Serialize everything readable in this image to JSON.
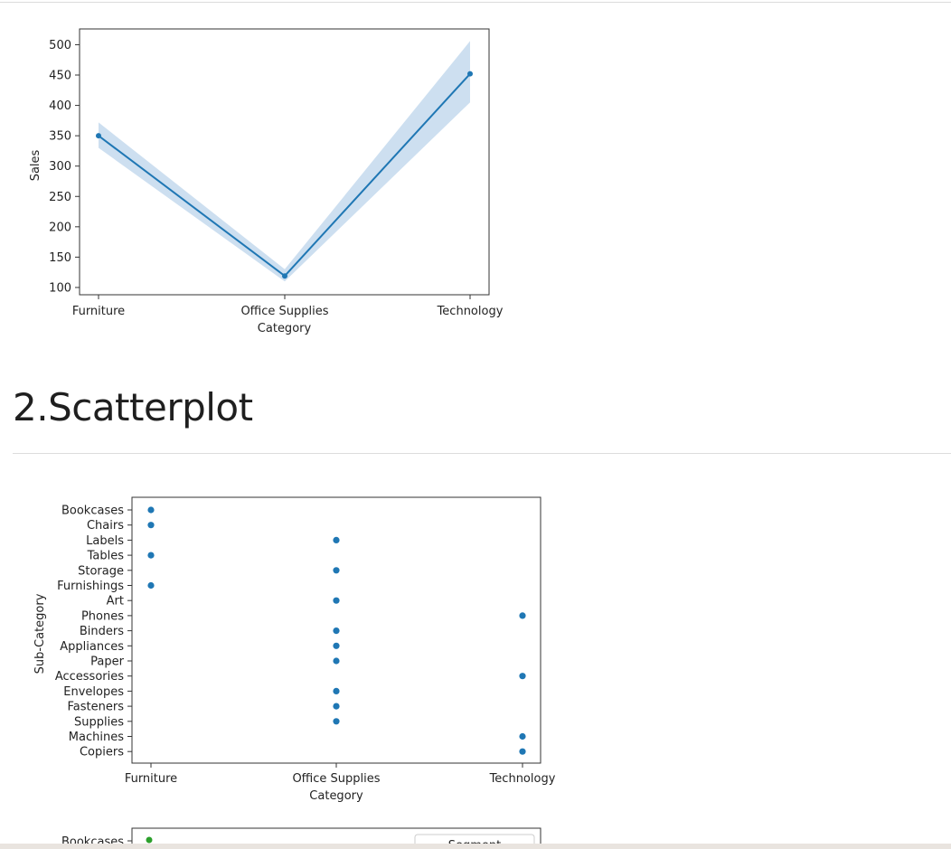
{
  "section_heading": "2.Scatterplot",
  "chart_data": [
    {
      "type": "line",
      "xlabel": "Category",
      "ylabel": "Sales",
      "categories": [
        "Furniture",
        "Office Supplies",
        "Technology"
      ],
      "series": [
        {
          "values": [
            350,
            119,
            452
          ],
          "ci_low": [
            330,
            110,
            405
          ],
          "ci_high": [
            372,
            130,
            506
          ]
        }
      ],
      "yticks": [
        100,
        150,
        200,
        250,
        300,
        350,
        400,
        450,
        500
      ],
      "ylim": [
        88,
        526
      ],
      "grid": false,
      "color": "#1f77b4",
      "ci_color": "#cddff0"
    },
    {
      "type": "scatter",
      "xlabel": "Category",
      "ylabel": "Sub-Category",
      "categories": [
        "Furniture",
        "Office Supplies",
        "Technology"
      ],
      "y_categories": [
        "Bookcases",
        "Chairs",
        "Labels",
        "Tables",
        "Storage",
        "Furnishings",
        "Art",
        "Phones",
        "Binders",
        "Appliances",
        "Paper",
        "Accessories",
        "Envelopes",
        "Fasteners",
        "Supplies",
        "Machines",
        "Copiers"
      ],
      "points": [
        {
          "x": "Furniture",
          "y": "Bookcases"
        },
        {
          "x": "Furniture",
          "y": "Chairs"
        },
        {
          "x": "Furniture",
          "y": "Tables"
        },
        {
          "x": "Furniture",
          "y": "Furnishings"
        },
        {
          "x": "Office Supplies",
          "y": "Labels"
        },
        {
          "x": "Office Supplies",
          "y": "Storage"
        },
        {
          "x": "Office Supplies",
          "y": "Art"
        },
        {
          "x": "Office Supplies",
          "y": "Binders"
        },
        {
          "x": "Office Supplies",
          "y": "Appliances"
        },
        {
          "x": "Office Supplies",
          "y": "Paper"
        },
        {
          "x": "Office Supplies",
          "y": "Envelopes"
        },
        {
          "x": "Office Supplies",
          "y": "Fasteners"
        },
        {
          "x": "Office Supplies",
          "y": "Supplies"
        },
        {
          "x": "Technology",
          "y": "Phones"
        },
        {
          "x": "Technology",
          "y": "Accessories"
        },
        {
          "x": "Technology",
          "y": "Machines"
        },
        {
          "x": "Technology",
          "y": "Copiers"
        }
      ],
      "grid": false,
      "color": "#1f77b4"
    },
    {
      "type": "scatter",
      "partial": true,
      "y_categories_visible": [
        "Bookcases"
      ],
      "legend_title": "Segment",
      "legend_placement": "top-right",
      "visible_point_color": "#2ca02c"
    }
  ]
}
